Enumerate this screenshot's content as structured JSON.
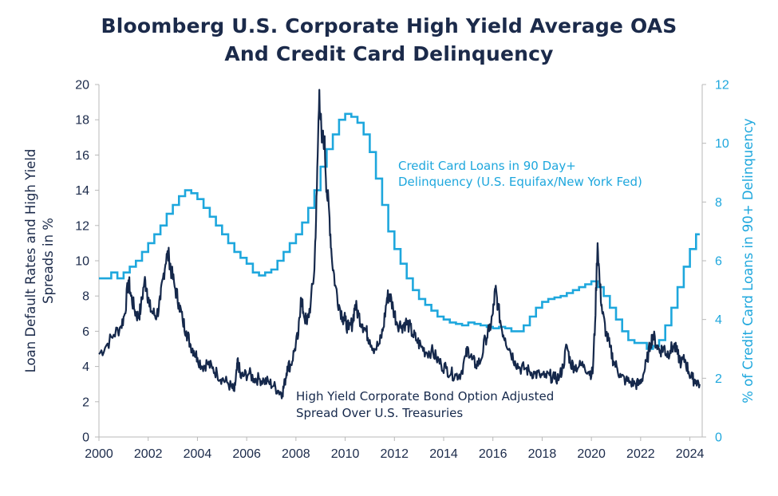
{
  "chart_data": {
    "type": "line",
    "title_line1": "Bloomberg U.S. Corporate High Yield Average OAS",
    "title_line2": "And Credit Card Delinquency",
    "ylabel_left_line1": "Loan Default Rates and High Yield",
    "ylabel_left_line2": "Spreads in %",
    "ylabel_right": "% of Credit Card Loans in 90+ Delinquency",
    "xlim": [
      2000,
      2024.5
    ],
    "ylim_left": [
      0,
      20
    ],
    "ylim_right": [
      0,
      12
    ],
    "x_ticks": [
      "2000",
      "2002",
      "2004",
      "2006",
      "2008",
      "2010",
      "2012",
      "2014",
      "2016",
      "2018",
      "2020",
      "2022",
      "2024"
    ],
    "y_left_ticks": [
      "0",
      "2",
      "4",
      "6",
      "8",
      "10",
      "12",
      "14",
      "16",
      "18",
      "20"
    ],
    "y_right_ticks": [
      "0",
      "2",
      "4",
      "6",
      "8",
      "10",
      "12"
    ],
    "series": [
      {
        "name": "High Yield Corporate Bond Option Adjusted Spread Over U.S. Treasuries",
        "axis": "left",
        "color": "#15284b",
        "points": [
          [
            2000.0,
            4.7
          ],
          [
            2000.3,
            5.2
          ],
          [
            2000.6,
            5.8
          ],
          [
            2000.9,
            6.3
          ],
          [
            2001.05,
            7.0
          ],
          [
            2001.2,
            8.9
          ],
          [
            2001.3,
            8.0
          ],
          [
            2001.45,
            7.2
          ],
          [
            2001.6,
            6.8
          ],
          [
            2001.7,
            7.3
          ],
          [
            2001.85,
            8.9
          ],
          [
            2001.95,
            8.4
          ],
          [
            2002.05,
            7.4
          ],
          [
            2002.2,
            7.0
          ],
          [
            2002.35,
            6.9
          ],
          [
            2002.5,
            7.8
          ],
          [
            2002.6,
            9.0
          ],
          [
            2002.75,
            10.4
          ],
          [
            2002.85,
            10.2
          ],
          [
            2002.95,
            9.3
          ],
          [
            2003.1,
            8.4
          ],
          [
            2003.25,
            7.6
          ],
          [
            2003.4,
            6.6
          ],
          [
            2003.55,
            6.0
          ],
          [
            2003.7,
            5.3
          ],
          [
            2003.85,
            4.9
          ],
          [
            2004.0,
            4.5
          ],
          [
            2004.2,
            4.0
          ],
          [
            2004.4,
            4.2
          ],
          [
            2004.6,
            3.9
          ],
          [
            2004.8,
            3.6
          ],
          [
            2005.0,
            3.3
          ],
          [
            2005.2,
            3.1
          ],
          [
            2005.4,
            2.8
          ],
          [
            2005.5,
            2.6
          ],
          [
            2005.6,
            3.8
          ],
          [
            2005.65,
            4.3
          ],
          [
            2005.75,
            3.4
          ],
          [
            2005.9,
            3.5
          ],
          [
            2006.1,
            3.6
          ],
          [
            2006.3,
            3.3
          ],
          [
            2006.5,
            3.3
          ],
          [
            2006.7,
            3.2
          ],
          [
            2006.9,
            3.1
          ],
          [
            2007.1,
            2.9
          ],
          [
            2007.3,
            2.6
          ],
          [
            2007.45,
            2.5
          ],
          [
            2007.55,
            3.1
          ],
          [
            2007.65,
            4.0
          ],
          [
            2007.8,
            4.1
          ],
          [
            2007.95,
            5.0
          ],
          [
            2008.1,
            5.8
          ],
          [
            2008.2,
            7.9
          ],
          [
            2008.3,
            7.1
          ],
          [
            2008.45,
            6.4
          ],
          [
            2008.6,
            7.6
          ],
          [
            2008.75,
            9.5
          ],
          [
            2008.85,
            14.0
          ],
          [
            2008.95,
            19.7
          ],
          [
            2009.05,
            16.7
          ],
          [
            2009.15,
            17.0
          ],
          [
            2009.25,
            14.0
          ],
          [
            2009.35,
            12.8
          ],
          [
            2009.45,
            10.3
          ],
          [
            2009.6,
            8.6
          ],
          [
            2009.75,
            7.5
          ],
          [
            2009.9,
            6.8
          ],
          [
            2010.0,
            6.6
          ],
          [
            2010.15,
            6.1
          ],
          [
            2010.3,
            6.5
          ],
          [
            2010.4,
            7.5
          ],
          [
            2010.55,
            6.9
          ],
          [
            2010.7,
            6.4
          ],
          [
            2010.85,
            6.0
          ],
          [
            2011.0,
            5.5
          ],
          [
            2011.2,
            5.0
          ],
          [
            2011.4,
            5.3
          ],
          [
            2011.55,
            6.2
          ],
          [
            2011.7,
            7.9
          ],
          [
            2011.8,
            8.1
          ],
          [
            2011.95,
            7.3
          ],
          [
            2012.1,
            6.5
          ],
          [
            2012.3,
            6.3
          ],
          [
            2012.45,
            6.5
          ],
          [
            2012.6,
            6.3
          ],
          [
            2012.75,
            5.8
          ],
          [
            2012.9,
            5.5
          ],
          [
            2013.1,
            5.1
          ],
          [
            2013.3,
            4.8
          ],
          [
            2013.5,
            4.9
          ],
          [
            2013.7,
            4.5
          ],
          [
            2013.9,
            4.1
          ],
          [
            2014.1,
            3.9
          ],
          [
            2014.3,
            3.6
          ],
          [
            2014.5,
            3.5
          ],
          [
            2014.7,
            3.6
          ],
          [
            2014.9,
            4.6
          ],
          [
            2015.0,
            5.0
          ],
          [
            2015.15,
            4.4
          ],
          [
            2015.3,
            4.1
          ],
          [
            2015.5,
            4.3
          ],
          [
            2015.7,
            5.6
          ],
          [
            2015.85,
            6.0
          ],
          [
            2016.0,
            7.0
          ],
          [
            2016.1,
            8.4
          ],
          [
            2016.2,
            7.5
          ],
          [
            2016.35,
            6.2
          ],
          [
            2016.5,
            5.6
          ],
          [
            2016.7,
            4.9
          ],
          [
            2016.9,
            4.3
          ],
          [
            2017.1,
            3.9
          ],
          [
            2017.3,
            3.9
          ],
          [
            2017.5,
            3.7
          ],
          [
            2017.7,
            3.6
          ],
          [
            2017.9,
            3.5
          ],
          [
            2018.1,
            3.4
          ],
          [
            2018.3,
            3.5
          ],
          [
            2018.5,
            3.3
          ],
          [
            2018.7,
            3.4
          ],
          [
            2018.85,
            4.0
          ],
          [
            2019.0,
            5.2
          ],
          [
            2019.15,
            4.2
          ],
          [
            2019.3,
            4.0
          ],
          [
            2019.5,
            4.0
          ],
          [
            2019.7,
            4.1
          ],
          [
            2019.9,
            3.7
          ],
          [
            2020.05,
            3.6
          ],
          [
            2020.15,
            6.5
          ],
          [
            2020.25,
            11.0
          ],
          [
            2020.35,
            8.5
          ],
          [
            2020.45,
            7.0
          ],
          [
            2020.6,
            5.9
          ],
          [
            2020.75,
            5.1
          ],
          [
            2020.9,
            4.3
          ],
          [
            2021.05,
            3.9
          ],
          [
            2021.2,
            3.4
          ],
          [
            2021.4,
            3.2
          ],
          [
            2021.6,
            3.1
          ],
          [
            2021.8,
            3.0
          ],
          [
            2021.95,
            3.0
          ],
          [
            2022.1,
            3.5
          ],
          [
            2022.25,
            4.3
          ],
          [
            2022.4,
            5.3
          ],
          [
            2022.5,
            5.8
          ],
          [
            2022.65,
            5.2
          ],
          [
            2022.8,
            4.9
          ],
          [
            2022.95,
            5.1
          ],
          [
            2023.05,
            4.7
          ],
          [
            2023.2,
            4.9
          ],
          [
            2023.35,
            5.2
          ],
          [
            2023.5,
            4.7
          ],
          [
            2023.65,
            4.2
          ],
          [
            2023.8,
            4.4
          ],
          [
            2023.95,
            3.7
          ],
          [
            2024.1,
            3.3
          ],
          [
            2024.25,
            3.2
          ],
          [
            2024.4,
            3.0
          ]
        ]
      },
      {
        "name": "Credit Card Loans in 90 Day+ Delinquency (U.S. Equifax/New York Fed)",
        "axis": "right",
        "color": "#1ea7dd",
        "steps": [
          [
            2000.0,
            5.4
          ],
          [
            2000.5,
            5.6
          ],
          [
            2000.75,
            5.4
          ],
          [
            2001.0,
            5.6
          ],
          [
            2001.25,
            5.8
          ],
          [
            2001.5,
            6.0
          ],
          [
            2001.75,
            6.3
          ],
          [
            2002.0,
            6.6
          ],
          [
            2002.25,
            6.9
          ],
          [
            2002.5,
            7.2
          ],
          [
            2002.75,
            7.6
          ],
          [
            2003.0,
            7.9
          ],
          [
            2003.25,
            8.2
          ],
          [
            2003.5,
            8.4
          ],
          [
            2003.75,
            8.3
          ],
          [
            2004.0,
            8.1
          ],
          [
            2004.25,
            7.8
          ],
          [
            2004.5,
            7.5
          ],
          [
            2004.75,
            7.2
          ],
          [
            2005.0,
            6.9
          ],
          [
            2005.25,
            6.6
          ],
          [
            2005.5,
            6.3
          ],
          [
            2005.75,
            6.1
          ],
          [
            2006.0,
            5.9
          ],
          [
            2006.25,
            5.6
          ],
          [
            2006.5,
            5.5
          ],
          [
            2006.75,
            5.6
          ],
          [
            2007.0,
            5.7
          ],
          [
            2007.25,
            6.0
          ],
          [
            2007.5,
            6.3
          ],
          [
            2007.75,
            6.6
          ],
          [
            2008.0,
            6.9
          ],
          [
            2008.25,
            7.3
          ],
          [
            2008.5,
            7.8
          ],
          [
            2008.75,
            8.4
          ],
          [
            2009.0,
            9.2
          ],
          [
            2009.25,
            9.8
          ],
          [
            2009.5,
            10.3
          ],
          [
            2009.75,
            10.8
          ],
          [
            2010.0,
            11.0
          ],
          [
            2010.25,
            10.9
          ],
          [
            2010.5,
            10.7
          ],
          [
            2010.75,
            10.3
          ],
          [
            2011.0,
            9.7
          ],
          [
            2011.25,
            8.8
          ],
          [
            2011.5,
            7.9
          ],
          [
            2011.75,
            7.0
          ],
          [
            2012.0,
            6.4
          ],
          [
            2012.25,
            5.9
          ],
          [
            2012.5,
            5.4
          ],
          [
            2012.75,
            5.0
          ],
          [
            2013.0,
            4.7
          ],
          [
            2013.25,
            4.5
          ],
          [
            2013.5,
            4.3
          ],
          [
            2013.75,
            4.1
          ],
          [
            2014.0,
            4.0
          ],
          [
            2014.25,
            3.9
          ],
          [
            2014.5,
            3.85
          ],
          [
            2014.75,
            3.8
          ],
          [
            2015.0,
            3.9
          ],
          [
            2015.25,
            3.85
          ],
          [
            2015.5,
            3.8
          ],
          [
            2015.75,
            3.75
          ],
          [
            2016.0,
            3.7
          ],
          [
            2016.25,
            3.75
          ],
          [
            2016.5,
            3.7
          ],
          [
            2016.75,
            3.6
          ],
          [
            2017.0,
            3.6
          ],
          [
            2017.25,
            3.8
          ],
          [
            2017.5,
            4.1
          ],
          [
            2017.75,
            4.4
          ],
          [
            2018.0,
            4.6
          ],
          [
            2018.25,
            4.7
          ],
          [
            2018.5,
            4.75
          ],
          [
            2018.75,
            4.8
          ],
          [
            2019.0,
            4.9
          ],
          [
            2019.25,
            5.0
          ],
          [
            2019.5,
            5.1
          ],
          [
            2019.75,
            5.2
          ],
          [
            2020.0,
            5.3
          ],
          [
            2020.25,
            5.1
          ],
          [
            2020.5,
            4.8
          ],
          [
            2020.75,
            4.4
          ],
          [
            2021.0,
            4.0
          ],
          [
            2021.25,
            3.6
          ],
          [
            2021.5,
            3.3
          ],
          [
            2021.75,
            3.2
          ],
          [
            2022.0,
            3.2
          ],
          [
            2022.25,
            3.0
          ],
          [
            2022.5,
            3.1
          ],
          [
            2022.75,
            3.3
          ],
          [
            2023.0,
            3.8
          ],
          [
            2023.25,
            4.4
          ],
          [
            2023.5,
            5.1
          ],
          [
            2023.75,
            5.8
          ],
          [
            2024.0,
            6.4
          ],
          [
            2024.25,
            6.9
          ],
          [
            2024.4,
            6.9
          ]
        ]
      }
    ],
    "annotations": {
      "hy_label_line1": "High Yield Corporate Bond Option Adjusted",
      "hy_label_line2": "Spread Over U.S. Treasuries",
      "cc_label_line1": "Credit Card Loans in 90 Day+",
      "cc_label_line2": "Delinquency (U.S. Equifax/New York Fed)"
    },
    "grid": false,
    "legend": "none"
  },
  "colors": {
    "title": "#1b2a4a",
    "hy_series": "#15284b",
    "cc_series": "#1ea7dd",
    "axis": "#b8b8b8"
  }
}
